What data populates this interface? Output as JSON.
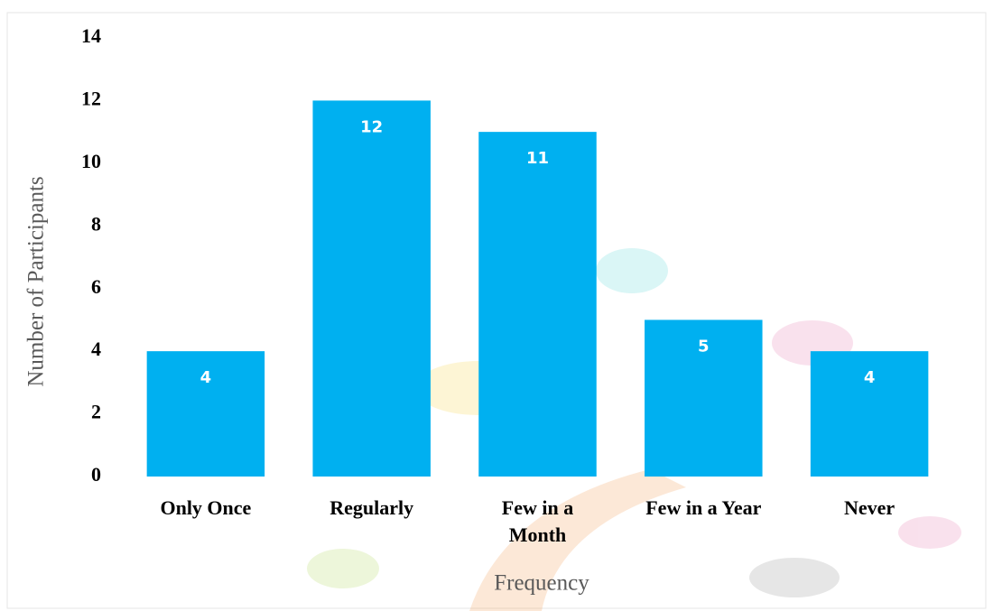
{
  "chart_data": {
    "type": "bar",
    "x_label": "Frequency",
    "y_label": "Number of Participants",
    "categories": [
      "Only Once",
      "Regularly",
      "Few in a Month",
      "Few in a Year",
      "Never"
    ],
    "values": [
      4,
      12,
      11,
      5,
      4
    ],
    "color": "#00b0f0",
    "ylim": [
      0,
      14
    ],
    "yticks": [
      0,
      2,
      4,
      6,
      8,
      10,
      12,
      14
    ],
    "grid": false
  }
}
